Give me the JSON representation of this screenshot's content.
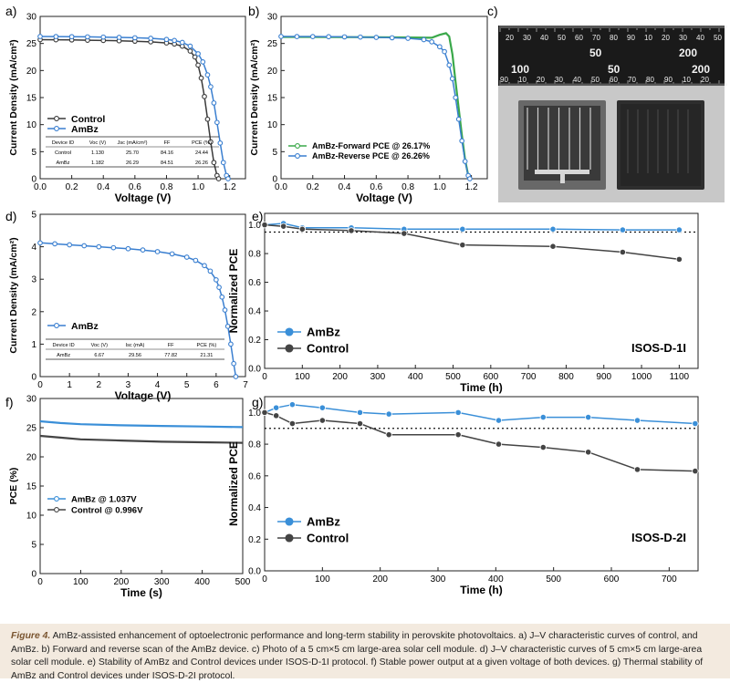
{
  "chart_data": [
    {
      "id": "a",
      "type": "line",
      "panel_label": "a)",
      "xlabel": "Voltage (V)",
      "ylabel": "Current Density (mA/cm²)",
      "xlim": [
        0,
        1.3
      ],
      "ylim": [
        0,
        30
      ],
      "xticks": [
        "0.0",
        "0.2",
        "0.4",
        "0.6",
        "0.8",
        "1.0",
        "1.2"
      ],
      "yticks": [
        "0",
        "5",
        "10",
        "15",
        "20",
        "25",
        "30"
      ],
      "legend_position": "bottom-left",
      "series": [
        {
          "name": "Control",
          "color": "#3a3a3a",
          "marker": "circle-open",
          "x": [
            0,
            0.1,
            0.2,
            0.3,
            0.4,
            0.5,
            0.6,
            0.7,
            0.8,
            0.85,
            0.9,
            0.95,
            0.98,
            1.0,
            1.02,
            1.04,
            1.06,
            1.08,
            1.1,
            1.12,
            1.13
          ],
          "y": [
            25.7,
            25.68,
            25.65,
            25.6,
            25.55,
            25.5,
            25.42,
            25.3,
            25.1,
            24.9,
            24.5,
            23.6,
            22.5,
            21.0,
            18.6,
            15.2,
            11.0,
            6.8,
            3.0,
            0.6,
            0
          ]
        },
        {
          "name": "AmBz",
          "color": "#3a7fd0",
          "marker": "circle-open",
          "x": [
            0,
            0.1,
            0.2,
            0.3,
            0.4,
            0.5,
            0.6,
            0.7,
            0.8,
            0.85,
            0.9,
            0.95,
            1.0,
            1.03,
            1.06,
            1.08,
            1.1,
            1.12,
            1.14,
            1.16,
            1.18,
            1.19
          ],
          "y": [
            26.29,
            26.28,
            26.26,
            26.22,
            26.18,
            26.12,
            26.05,
            25.95,
            25.75,
            25.55,
            25.2,
            24.5,
            23.1,
            21.6,
            19.2,
            17.0,
            14.0,
            10.4,
            6.6,
            3.0,
            0.6,
            0
          ]
        }
      ],
      "table": {
        "headers": [
          "Device ID",
          "Voc (V)",
          "Jsc (mA/cm²)",
          "FF",
          "PCE (%)"
        ],
        "rows": [
          [
            "Control",
            "1.130",
            "25.70",
            "84.16",
            "24.44"
          ],
          [
            "AmBz",
            "1.182",
            "26.29",
            "84.51",
            "26.26"
          ]
        ]
      }
    },
    {
      "id": "b",
      "type": "line",
      "panel_label": "b)",
      "xlabel": "Voltage (V)",
      "ylabel": "Current Density (mA/cm²)",
      "xlim": [
        0,
        1.3
      ],
      "ylim": [
        0,
        30
      ],
      "xticks": [
        "0.0",
        "0.2",
        "0.4",
        "0.6",
        "0.8",
        "1.0",
        "1.2"
      ],
      "yticks": [
        "0",
        "5",
        "10",
        "15",
        "20",
        "25",
        "30"
      ],
      "legend_position": "bottom-left",
      "series": [
        {
          "name": "AmBz-Forward PCE @ 26.17%",
          "color": "#3aa84a",
          "marker": "none",
          "x": [
            0,
            0.2,
            0.4,
            0.6,
            0.8,
            0.95,
            1.0,
            1.04,
            1.06,
            1.08,
            1.1,
            1.12,
            1.14,
            1.16,
            1.18,
            1.19
          ],
          "y": [
            26.2,
            26.2,
            26.18,
            26.15,
            26.1,
            26.05,
            26.6,
            26.9,
            26.3,
            23.0,
            18.0,
            13.0,
            8.0,
            3.5,
            0.6,
            0
          ]
        },
        {
          "name": "AmBz-Reverse PCE @ 26.26%",
          "color": "#3a7fd0",
          "marker": "circle-open",
          "x": [
            0,
            0.1,
            0.2,
            0.3,
            0.4,
            0.5,
            0.6,
            0.7,
            0.8,
            0.9,
            0.95,
            1.0,
            1.03,
            1.06,
            1.08,
            1.1,
            1.12,
            1.14,
            1.16,
            1.18,
            1.19
          ],
          "y": [
            26.29,
            26.28,
            26.27,
            26.25,
            26.22,
            26.18,
            26.12,
            26.05,
            25.95,
            25.7,
            25.3,
            24.4,
            23.5,
            21.0,
            18.5,
            15.0,
            11.0,
            7.0,
            3.2,
            0.6,
            0
          ]
        }
      ]
    },
    {
      "id": "d",
      "type": "line",
      "panel_label": "d)",
      "xlabel": "Voltage (V)",
      "ylabel": "Current Density (mA/cm²)",
      "xlim": [
        0,
        7
      ],
      "ylim": [
        0,
        5
      ],
      "xticks": [
        "0",
        "1",
        "2",
        "3",
        "4",
        "5",
        "6",
        "7"
      ],
      "yticks": [
        "0",
        "1",
        "2",
        "3",
        "4",
        "5"
      ],
      "legend_position": "bottom-left",
      "series": [
        {
          "name": "AmBz",
          "color": "#3a7fd0",
          "marker": "circle-open",
          "x": [
            0,
            0.5,
            1,
            1.5,
            2,
            2.5,
            3,
            3.5,
            4,
            4.5,
            5,
            5.3,
            5.6,
            5.8,
            6.0,
            6.1,
            6.2,
            6.3,
            6.4,
            6.5,
            6.6,
            6.67
          ],
          "y": [
            4.12,
            4.09,
            4.06,
            4.03,
            4.0,
            3.97,
            3.94,
            3.9,
            3.85,
            3.78,
            3.68,
            3.58,
            3.42,
            3.25,
            2.98,
            2.75,
            2.45,
            2.05,
            1.55,
            1.0,
            0.4,
            0
          ]
        }
      ],
      "table": {
        "headers": [
          "Device ID",
          "Voc (V)",
          "Isc (mA)",
          "FF",
          "PCE (%)"
        ],
        "rows": [
          [
            "AmBz",
            "6.67",
            "29.56",
            "77.82",
            "21.31"
          ]
        ]
      }
    },
    {
      "id": "e",
      "type": "line",
      "panel_label": "e)",
      "xlabel": "Time (h)",
      "ylabel": "Normalized PCE",
      "xlim": [
        0,
        1150
      ],
      "ylim": [
        0,
        1.08
      ],
      "xticks": [
        "0",
        "100",
        "200",
        "300",
        "400",
        "500",
        "600",
        "700",
        "800",
        "900",
        "1000",
        "1100"
      ],
      "yticks": [
        "0.0",
        "0.2",
        "0.4",
        "0.6",
        "0.8",
        "1.0"
      ],
      "reference_line": 0.95,
      "annotation": "ISOS-D-1I",
      "legend_position": "bottom-left",
      "series": [
        {
          "name": "AmBz",
          "color": "#3a8fd8",
          "marker": "circle",
          "x": [
            0,
            50,
            100,
            230,
            370,
            525,
            765,
            950,
            1100
          ],
          "y": [
            1.0,
            1.01,
            0.98,
            0.98,
            0.97,
            0.97,
            0.97,
            0.965,
            0.965
          ]
        },
        {
          "name": "Control",
          "color": "#444444",
          "marker": "circle",
          "x": [
            0,
            50,
            100,
            230,
            370,
            525,
            765,
            950,
            1100
          ],
          "y": [
            1.0,
            0.99,
            0.97,
            0.96,
            0.94,
            0.86,
            0.85,
            0.81,
            0.76
          ]
        }
      ]
    },
    {
      "id": "f",
      "type": "line",
      "panel_label": "f)",
      "xlabel": "Time (s)",
      "ylabel": "PCE (%)",
      "xlim": [
        0,
        500
      ],
      "ylim": [
        0,
        30
      ],
      "xticks": [
        "0",
        "100",
        "200",
        "300",
        "400",
        "500"
      ],
      "yticks": [
        "0",
        "5",
        "10",
        "15",
        "20",
        "25",
        "30"
      ],
      "legend_position": "middle-left",
      "series": [
        {
          "name": "AmBz   @ 1.037V",
          "color": "#3a8fd8",
          "marker": "none",
          "x": [
            0,
            50,
            100,
            200,
            300,
            400,
            500
          ],
          "y": [
            26.1,
            25.8,
            25.6,
            25.4,
            25.3,
            25.2,
            25.1
          ]
        },
        {
          "name": "Control @ 0.996V",
          "color": "#444444",
          "marker": "none",
          "x": [
            0,
            50,
            100,
            200,
            300,
            400,
            500
          ],
          "y": [
            23.6,
            23.3,
            23.0,
            22.8,
            22.6,
            22.5,
            22.4
          ]
        }
      ]
    },
    {
      "id": "g",
      "type": "line",
      "panel_label": "g)",
      "xlabel": "Time (h)",
      "ylabel": "Normalized PCE",
      "xlim": [
        0,
        750
      ],
      "ylim": [
        0,
        1.1
      ],
      "xticks": [
        "0",
        "100",
        "200",
        "300",
        "400",
        "500",
        "600",
        "700"
      ],
      "yticks": [
        "0.0",
        "0.2",
        "0.4",
        "0.6",
        "0.8",
        "1.0"
      ],
      "reference_line": 0.9,
      "annotation": "ISOS-D-2I",
      "legend_position": "bottom-left",
      "series": [
        {
          "name": "AmBz",
          "color": "#3a8fd8",
          "marker": "circle",
          "x": [
            0,
            20,
            48,
            100,
            165,
            215,
            335,
            405,
            482,
            560,
            645,
            745
          ],
          "y": [
            1.0,
            1.03,
            1.05,
            1.03,
            1.0,
            0.99,
            1.0,
            0.95,
            0.97,
            0.97,
            0.95,
            0.93
          ]
        },
        {
          "name": "Control",
          "color": "#444444",
          "marker": "circle",
          "x": [
            0,
            20,
            48,
            100,
            165,
            215,
            335,
            405,
            482,
            560,
            645,
            745
          ],
          "y": [
            1.0,
            0.98,
            0.93,
            0.95,
            0.93,
            0.86,
            0.86,
            0.8,
            0.78,
            0.75,
            0.64,
            0.63
          ]
        }
      ]
    }
  ],
  "photo": {
    "panel_label": "c)",
    "ruler_numbers_top": [
      "20",
      "30",
      "40",
      "50",
      "60",
      "70",
      "80",
      "90",
      "10",
      "20",
      "30",
      "40",
      "50"
    ],
    "ruler_big_top": [
      "50",
      "200"
    ],
    "ruler_big_bottom": [
      "100",
      "50",
      "200"
    ],
    "ruler_numbers_bottom": [
      "90",
      "10",
      "20",
      "30",
      "40",
      "50",
      "60",
      "70",
      "80",
      "90",
      "10",
      "20"
    ],
    "colors": {
      "ruler": "#1a1a1a",
      "background": "#c8c8c8",
      "module_frame": "#555555",
      "module_dark": "#2e2e2e"
    }
  },
  "caption": {
    "figure_number": "Figure 4.",
    "text": " AmBz-assisted enhancement of optoelectronic performance and long-term stability in perovskite photovoltaics. a) J–V characteristic curves of control, and AmBz. b) Forward and reverse scan of the AmBz device. c) Photo of a 5 cm×5 cm large-area solar cell module. d) J–V characteristic curves of 5 cm×5 cm large-area solar cell module. e) Stability of AmBz and Control devices under ISOS-D-1I protocol. f) Stable power output at a given voltage of both devices. g) Thermal stability of AmBz and Control devices under ISOS-D-2I protocol."
  }
}
